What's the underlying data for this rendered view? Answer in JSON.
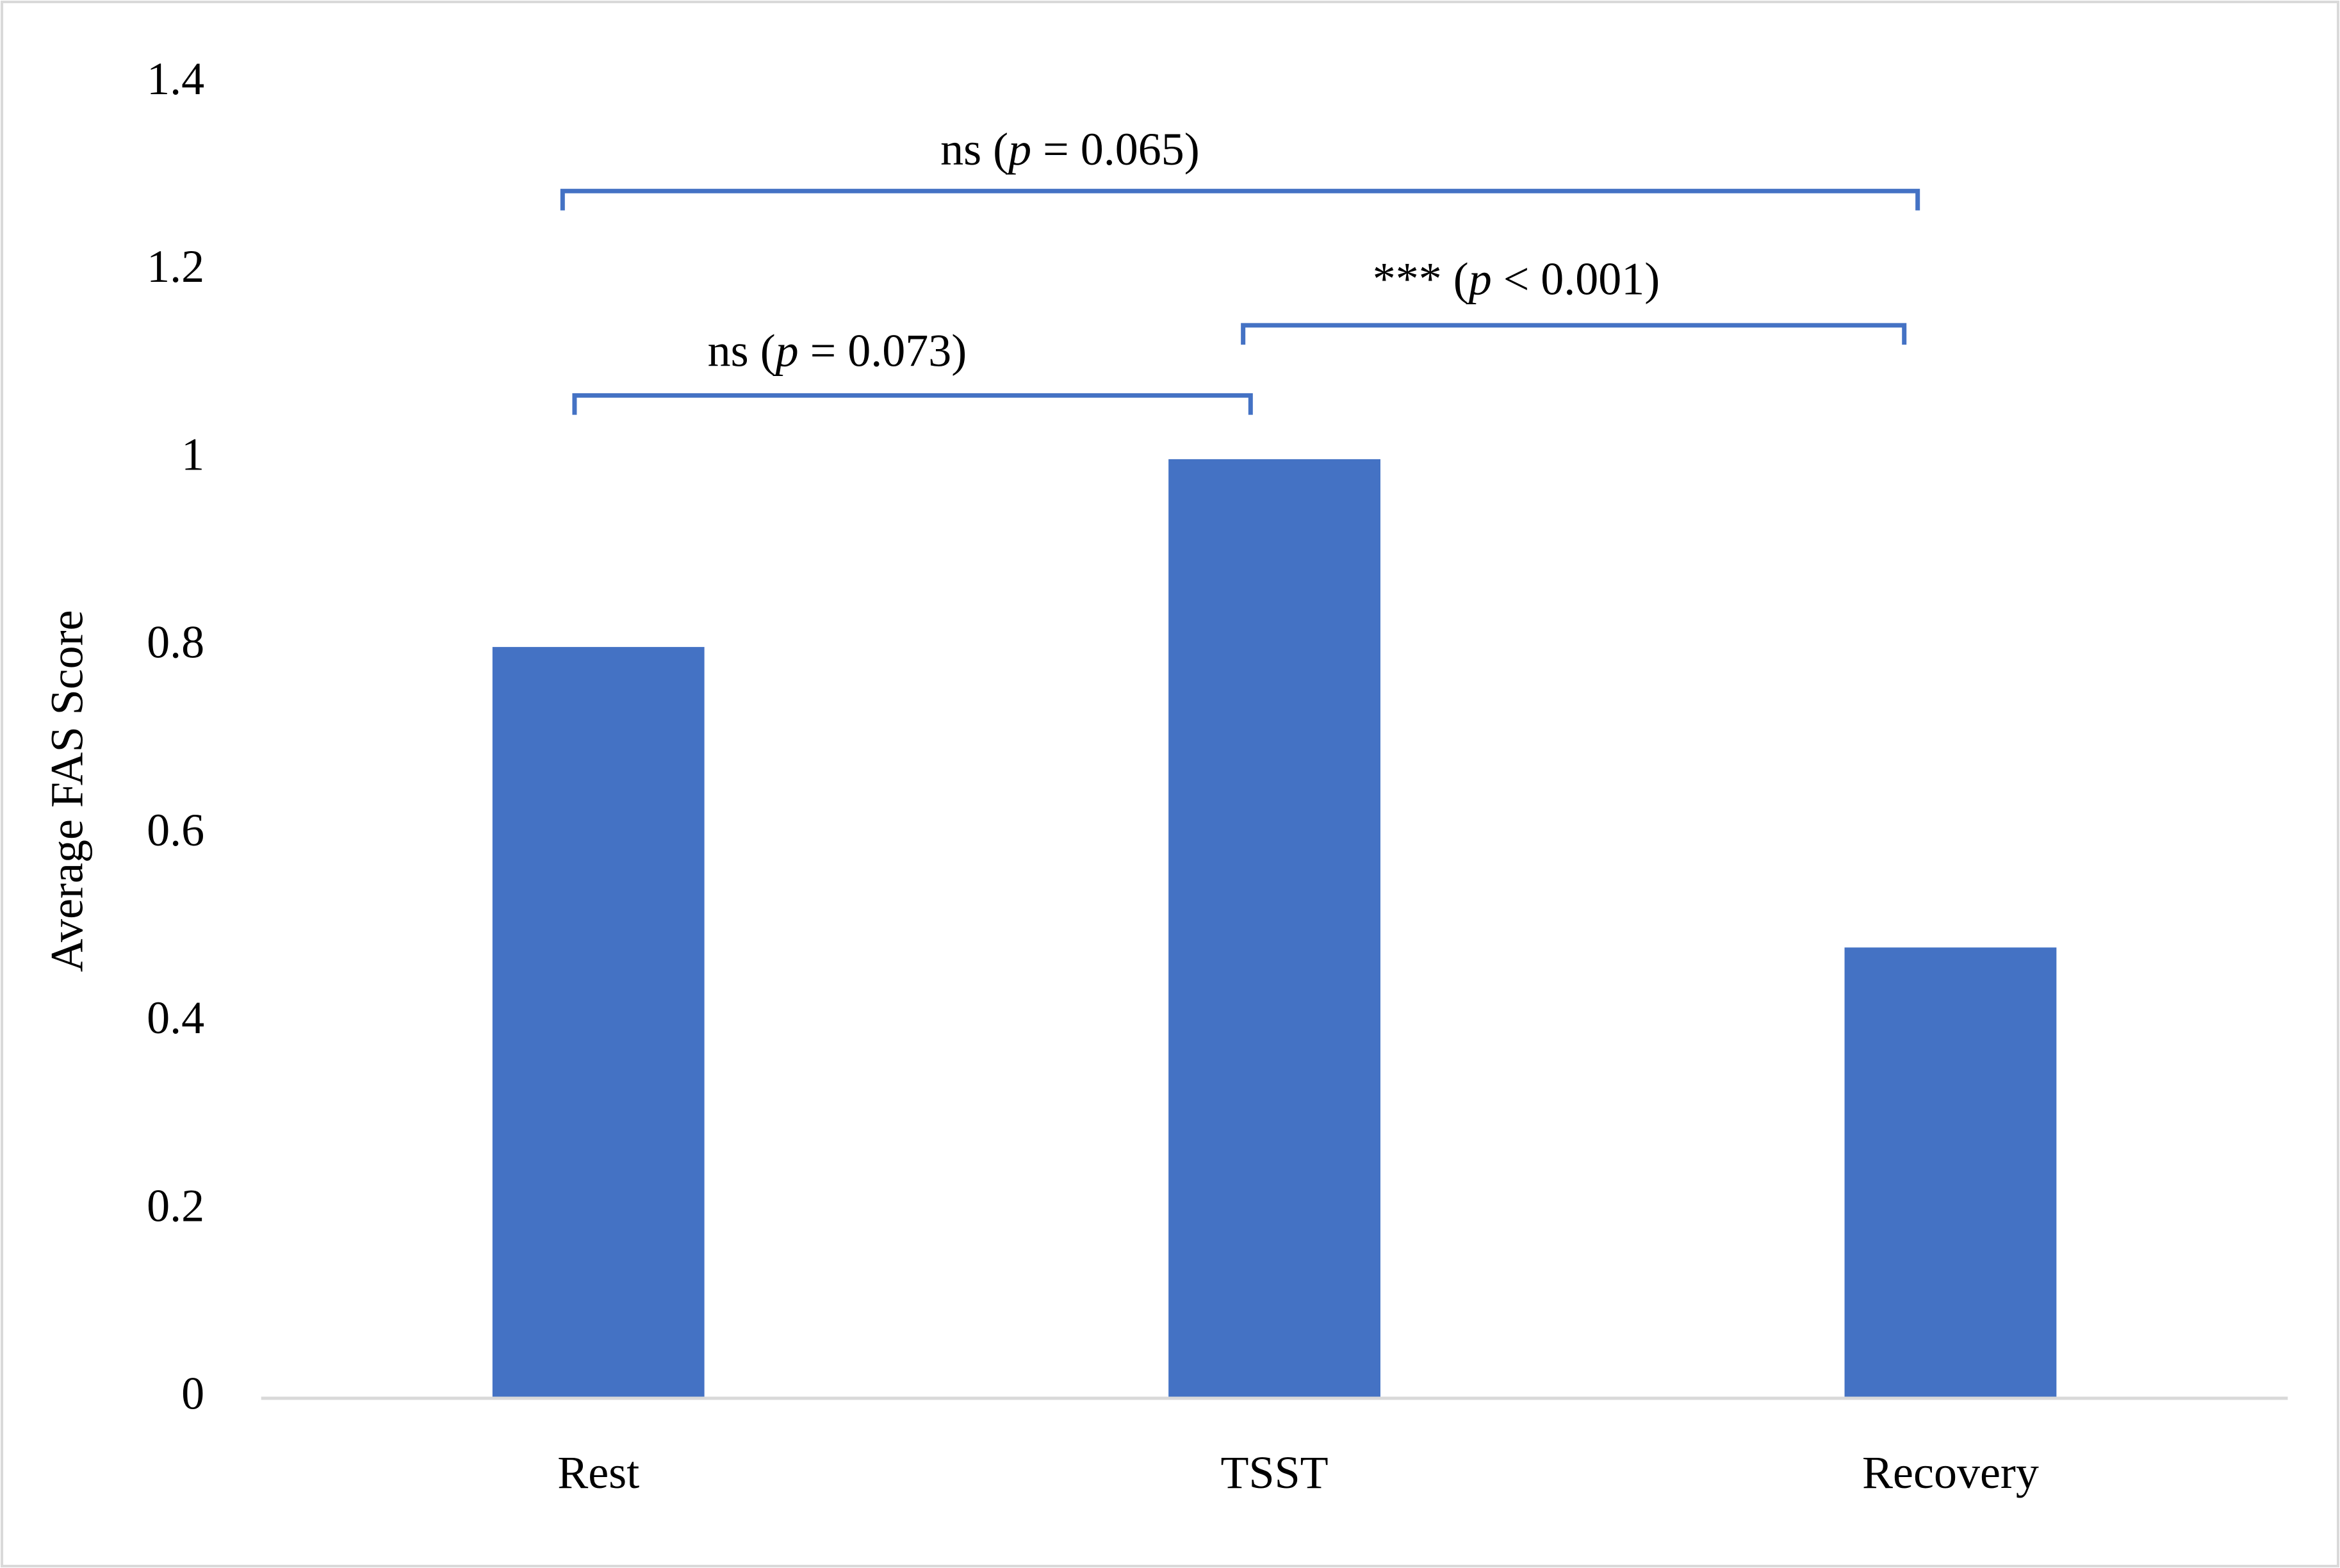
{
  "chart_data": {
    "type": "bar",
    "y_label": "Average FAS Score",
    "categories": [
      "Rest",
      "TSST",
      "Recovery"
    ],
    "values": [
      0.8,
      1.0,
      0.48
    ],
    "color": "#4472c4",
    "ylim": [
      0,
      1.4
    ],
    "yticks": [
      0,
      0.2,
      0.4,
      0.6,
      0.8,
      1,
      1.2,
      1.4
    ],
    "grid": false,
    "annotations": [
      {
        "text": [
          "ns (",
          "p",
          " = 0.065)"
        ]
      },
      {
        "text": [
          "ns (",
          "p",
          " = 0.073)"
        ]
      },
      {
        "text": [
          "*** (",
          "p",
          " < 0.001)"
        ]
      }
    ],
    "annotation_color": "#4472c4"
  }
}
